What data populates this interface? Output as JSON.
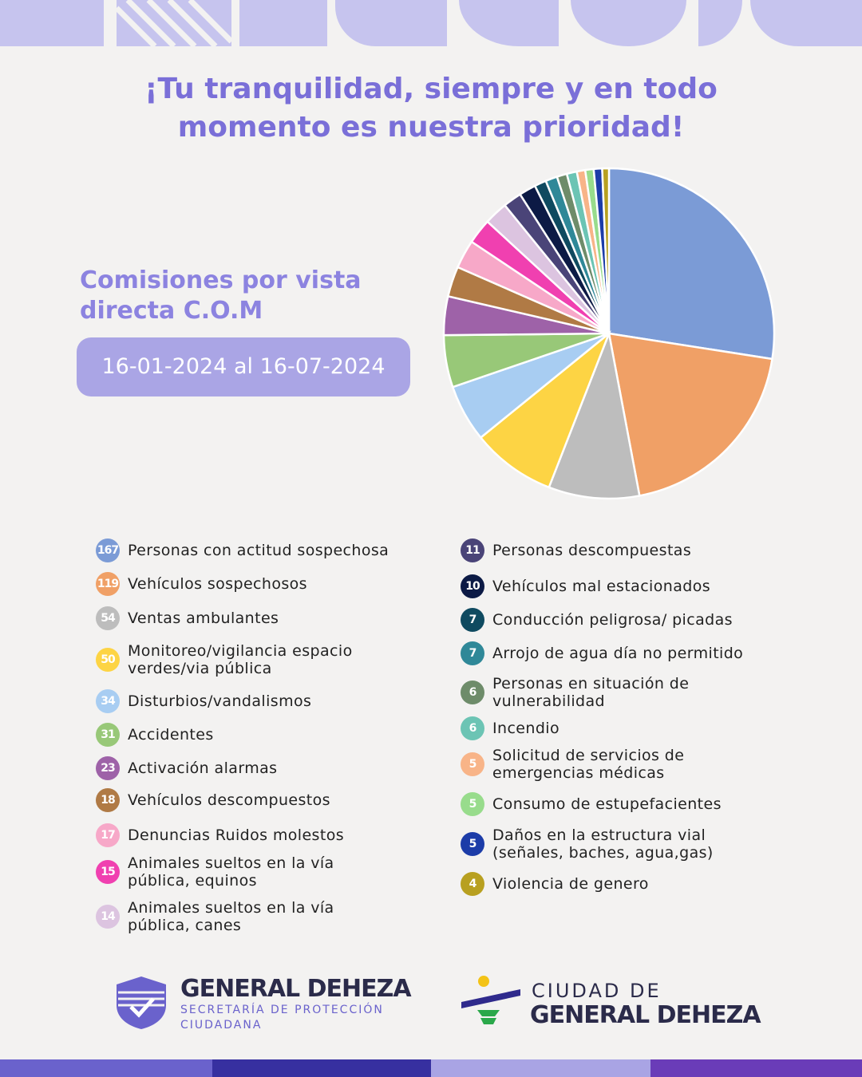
{
  "chart_data": {
    "type": "pie",
    "title": "¡Tu tranquilidad, siempre y en todo momento es nuestra prioridad!",
    "subtitle": "Comisiones por vista directa C.O.M",
    "period": "16-01-2024 al 16-07-2024",
    "categories": [
      "Personas con actitud sospechosa",
      "Vehículos sospechosos",
      "Ventas ambulantes",
      "Monitoreo/vigilancia espacio verdes/via pública",
      "Disturbios/vandalismos",
      "Accidentes",
      "Activación alarmas",
      "Vehículos descompuestos",
      "Denuncias Ruidos molestos",
      "Animales sueltos en la vía pública, equinos",
      "Animales sueltos en la vía pública, canes",
      "Personas descompuestas",
      "Vehículos mal estacionados",
      "Conducción peligrosa/ picadas",
      "Arrojo de agua día no permitido",
      "Personas en situación de vulnerabilidad",
      "Incendio",
      "Solicitud de servicios de emergencias médicas",
      "Consumo de estupefacientes",
      "Daños en la estructura vial (señales, baches, agua,gas)",
      "Violencia de genero"
    ],
    "values": [
      167,
      119,
      54,
      50,
      34,
      31,
      23,
      18,
      17,
      15,
      14,
      11,
      10,
      7,
      7,
      6,
      6,
      5,
      5,
      5,
      4
    ],
    "colors": [
      "#7b9bd6",
      "#f0a066",
      "#bdbdbd",
      "#fdd444",
      "#a8cdf2",
      "#98c878",
      "#9e62a8",
      "#b07a45",
      "#f7a8c8",
      "#f040b0",
      "#dcc4e0",
      "#4a4478",
      "#0c1a45",
      "#0f4a60",
      "#2f8898",
      "#6e8c6a",
      "#6cc4b4",
      "#f8b488",
      "#98dc8c",
      "#1c3ca8",
      "#b8a020"
    ]
  },
  "footer": {
    "left_title": "GENERAL DEHEZA",
    "left_subtitle": "SECRETARÍA DE PROTECCIÓN CIUDADANA",
    "right_line1": "CIUDAD DE",
    "right_line2": "GENERAL DEHEZA"
  }
}
